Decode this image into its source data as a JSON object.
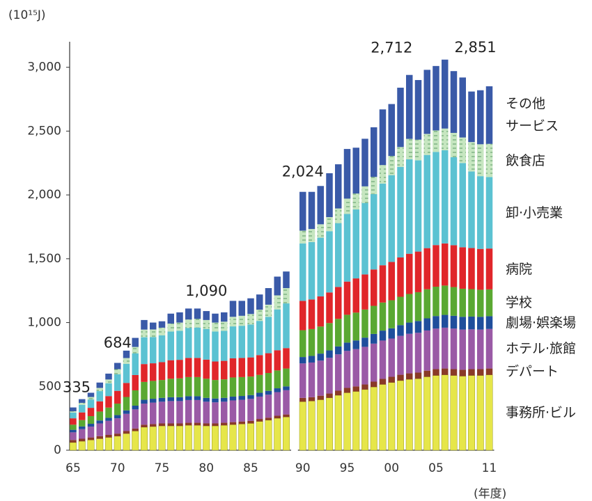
{
  "chart_data": {
    "type": "bar",
    "stacked": true,
    "unit_label": "(10¹⁵J)",
    "x_label": "(年度)",
    "categories": [
      "65",
      null,
      null,
      null,
      null,
      "70",
      null,
      null,
      null,
      null,
      "75",
      null,
      null,
      null,
      null,
      "80",
      null,
      null,
      null,
      null,
      "85",
      null,
      null,
      null,
      null,
      "90",
      null,
      null,
      null,
      null,
      "95",
      null,
      null,
      null,
      null,
      "00",
      null,
      null,
      null,
      null,
      "05",
      null,
      null,
      null,
      null,
      null,
      "11"
    ],
    "ylim": [
      0,
      3200
    ],
    "yticks": [
      0,
      500,
      {
        "value": 1000,
        "label": "1,000"
      },
      {
        "value": 1500,
        "label": "1,500"
      },
      {
        "value": 2000,
        "label": "2,000"
      },
      {
        "value": 2500,
        "label": "2,500"
      },
      {
        "value": 3000,
        "label": "3,000"
      }
    ],
    "series": [
      {
        "name": "事務所·ビル",
        "color": "#e6e64a",
        "values": [
          60,
          70,
          80,
          90,
          100,
          110,
          130,
          150,
          180,
          185,
          190,
          190,
          190,
          195,
          195,
          190,
          190,
          195,
          200,
          205,
          210,
          225,
          235,
          250,
          260,
          380,
          385,
          395,
          410,
          430,
          450,
          460,
          475,
          495,
          515,
          530,
          545,
          555,
          560,
          575,
          585,
          590,
          585,
          580,
          585,
          585,
          590
        ]
      },
      {
        "name": "デパート",
        "color": "#8a3a28",
        "values": [
          20,
          20,
          20,
          20,
          20,
          20,
          20,
          20,
          20,
          20,
          20,
          20,
          20,
          20,
          20,
          20,
          20,
          20,
          20,
          20,
          20,
          20,
          20,
          20,
          20,
          30,
          30,
          32,
          34,
          36,
          38,
          40,
          40,
          42,
          44,
          45,
          46,
          47,
          48,
          48,
          50,
          50,
          50,
          50,
          50,
          50,
          50
        ]
      },
      {
        "name": "ホテル·旅館",
        "color": "#9a5aa6",
        "values": [
          60,
          75,
          85,
          100,
          110,
          120,
          135,
          150,
          165,
          168,
          170,
          175,
          175,
          178,
          178,
          170,
          165,
          165,
          170,
          170,
          172,
          175,
          180,
          185,
          190,
          270,
          272,
          275,
          280,
          285,
          290,
          292,
          295,
          298,
          300,
          300,
          305,
          310,
          312,
          315,
          318,
          320,
          318,
          315,
          312,
          310,
          310
        ]
      },
      {
        "name": "劇場·娯楽場",
        "color": "#1f4e9c",
        "values": [
          20,
          21,
          22,
          23,
          24,
          25,
          27,
          29,
          30,
          30,
          30,
          30,
          30,
          30,
          30,
          30,
          30,
          30,
          30,
          30,
          30,
          30,
          30,
          30,
          30,
          50,
          52,
          55,
          58,
          62,
          65,
          68,
          72,
          76,
          78,
          80,
          84,
          88,
          92,
          95,
          98,
          100,
          100,
          100,
          100,
          100,
          100
        ]
      },
      {
        "name": "学校",
        "color": "#5aa832",
        "values": [
          40,
          50,
          60,
          70,
          80,
          90,
          105,
          120,
          140,
          140,
          140,
          145,
          148,
          150,
          150,
          150,
          145,
          145,
          150,
          148,
          145,
          140,
          140,
          140,
          140,
          210,
          210,
          212,
          214,
          216,
          218,
          218,
          220,
          220,
          220,
          220,
          222,
          224,
          226,
          228,
          230,
          230,
          225,
          220,
          215,
          212,
          210
        ]
      },
      {
        "name": "病院",
        "color": "#e0262a",
        "values": [
          50,
          60,
          65,
          80,
          90,
          100,
          110,
          120,
          140,
          138,
          140,
          145,
          145,
          150,
          150,
          150,
          145,
          145,
          150,
          150,
          150,
          155,
          155,
          158,
          160,
          230,
          232,
          236,
          240,
          250,
          260,
          268,
          275,
          285,
          292,
          300,
          308,
          315,
          318,
          322,
          326,
          330,
          328,
          325,
          322,
          320,
          320
        ]
      },
      {
        "name": "卸·小売業",
        "color": "#5bc2d2",
        "values": [
          45,
          60,
          65,
          80,
          100,
          130,
          150,
          170,
          210,
          205,
          210,
          225,
          228,
          235,
          238,
          240,
          235,
          235,
          250,
          252,
          258,
          268,
          285,
          320,
          350,
          450,
          450,
          460,
          480,
          500,
          530,
          540,
          560,
          590,
          640,
          680,
          710,
          740,
          715,
          730,
          730,
          730,
          690,
          660,
          600,
          570,
          560
        ]
      },
      {
        "name": "飲食店",
        "color": "#c6e6c0",
        "values": [
          10,
          15,
          20,
          25,
          30,
          40,
          45,
          50,
          60,
          60,
          60,
          62,
          64,
          66,
          68,
          70,
          70,
          72,
          75,
          78,
          82,
          88,
          95,
          110,
          120,
          100,
          102,
          105,
          110,
          115,
          120,
          125,
          130,
          135,
          145,
          150,
          155,
          160,
          162,
          165,
          168,
          170,
          190,
          200,
          230,
          250,
          260
        ]
      },
      {
        "name": "その他\nサービス",
        "color": "#3a5aa8",
        "values": [
          30,
          29,
          33,
          42,
          46,
          49,
          58,
          71,
          75,
          54,
          50,
          78,
          80,
          86,
          81,
          70,
          70,
          73,
          125,
          117,
          123,
          119,
          130,
          147,
          130,
          304,
          291,
          300,
          344,
          346,
          389,
          359,
          373,
          389,
          436,
          407,
          465,
          501,
          467,
          502,
          505,
          540,
          484,
          470,
          396,
          423,
          451
        ]
      }
    ],
    "annotations": [
      {
        "index": 0,
        "value": 335,
        "label": "335"
      },
      {
        "index": 5,
        "value": 684,
        "label": "684"
      },
      {
        "index": 15,
        "value": 1090,
        "label": "1,090"
      },
      {
        "index": 25,
        "value": 2024,
        "label": "2,024"
      },
      {
        "index": 35,
        "value": 2712,
        "label": "2,712"
      },
      {
        "index": 46,
        "value": 2851,
        "label": "2,851"
      }
    ]
  }
}
